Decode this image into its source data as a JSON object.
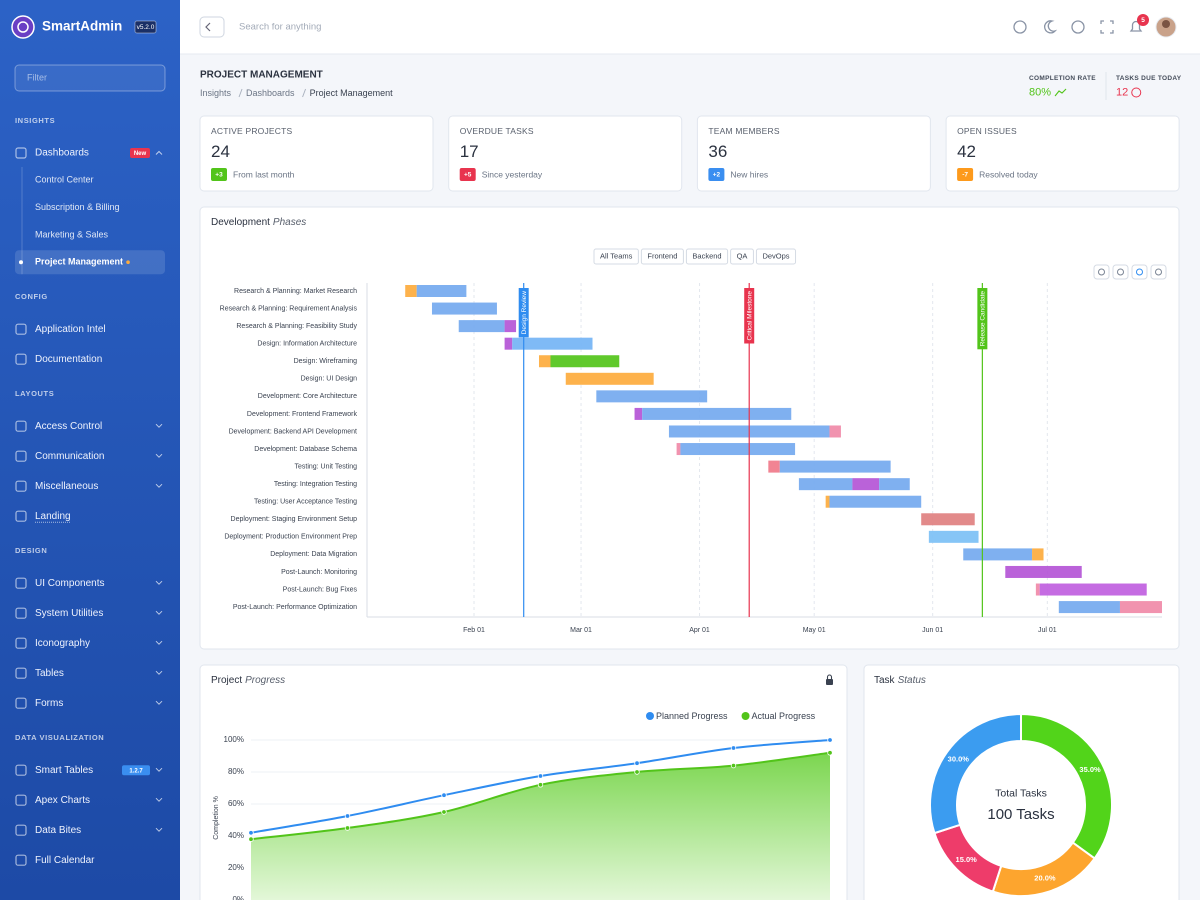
{
  "brand": {
    "name": "SmartAdmin",
    "version": "v5.2.0"
  },
  "sidebar": {
    "filter": "Filter",
    "sections": [
      {
        "title": "INSIGHTS",
        "items": [
          {
            "label": "Dashboards",
            "badge": "New",
            "badge_color": "#e8344e",
            "open": true,
            "children": [
              {
                "label": "Control Center"
              },
              {
                "label": "Subscription & Billing"
              },
              {
                "label": "Marketing & Sales"
              },
              {
                "label": "Project Management",
                "active": true
              }
            ]
          }
        ]
      },
      {
        "title": "CONFIG",
        "items": [
          {
            "label": "Application Intel"
          },
          {
            "label": "Documentation"
          }
        ]
      },
      {
        "title": "LAYOUTS",
        "items": [
          {
            "label": "Access Control",
            "arrow": true
          },
          {
            "label": "Communication",
            "arrow": true
          },
          {
            "label": "Miscellaneous",
            "arrow": true
          },
          {
            "label": "Landing",
            "underline": true
          }
        ]
      },
      {
        "title": "DESIGN",
        "items": [
          {
            "label": "UI Components",
            "arrow": true
          },
          {
            "label": "System Utilities",
            "arrow": true
          },
          {
            "label": "Iconography",
            "arrow": true
          },
          {
            "label": "Tables",
            "arrow": true
          },
          {
            "label": "Forms",
            "arrow": true
          }
        ]
      },
      {
        "title": "DATA VISUALIZATION",
        "items": [
          {
            "label": "Smart Tables",
            "badge": "1.2.7",
            "badge_color": "#3a8ef0",
            "arrow": true
          },
          {
            "label": "Apex Charts",
            "arrow": true
          },
          {
            "label": "Data Bites",
            "arrow": true
          },
          {
            "label": "Full Calendar"
          }
        ]
      }
    ]
  },
  "topbar": {
    "search": "Search for anything",
    "notifications": "5"
  },
  "header": {
    "title": "PROJECT MANAGEMENT",
    "breadcrumb": [
      "Insights",
      "Dashboards",
      "Project Management"
    ],
    "kpis": [
      {
        "label": "COMPLETION RATE",
        "value": "80%",
        "color": "#52c41a"
      },
      {
        "label": "TASKS DUE TODAY",
        "value": "12",
        "color": "#e8344e"
      }
    ]
  },
  "stats": [
    {
      "label": "ACTIVE PROJECTS",
      "value": 24,
      "badge": "+3",
      "badge_color": "#52c41a",
      "note": "From last month"
    },
    {
      "label": "OVERDUE TASKS",
      "value": 17,
      "badge": "+5",
      "badge_color": "#e8344e",
      "note": "Since yesterday"
    },
    {
      "label": "TEAM MEMBERS",
      "value": 36,
      "badge": "+2",
      "badge_color": "#3a8ef0",
      "note": "New hires"
    },
    {
      "label": "OPEN ISSUES",
      "value": 42,
      "badge": "-7",
      "badge_color": "#fd9a1c",
      "note": "Resolved today"
    }
  ],
  "gantt": {
    "type": "gantt",
    "title": "Development",
    "title_em": "Phases",
    "filters": [
      "All Teams",
      "Frontend",
      "Backend",
      "QA",
      "DevOps"
    ],
    "xlim": [
      3,
      211
    ],
    "xticks": [
      {
        "value": 31,
        "label": "Feb 01"
      },
      {
        "value": 59,
        "label": "Mar 01"
      },
      {
        "value": 90,
        "label": "Apr 01"
      },
      {
        "value": 120,
        "label": "May 01"
      },
      {
        "value": 151,
        "label": "Jun 01"
      },
      {
        "value": 181,
        "label": "Jul 01"
      }
    ],
    "milestones": [
      {
        "label": "Design Review",
        "value": 44,
        "color": "#2f8cf0"
      },
      {
        "label": "Critical Milestone",
        "value": 103,
        "color": "#e8344e"
      },
      {
        "label": "Release Candidate",
        "value": 164,
        "color": "#52c41a"
      }
    ],
    "tasks": [
      {
        "label": "Research & Planning: Market Research",
        "segments": [
          {
            "start": 13,
            "end": 16,
            "color": "#fdab3d"
          },
          {
            "start": 16,
            "end": 29,
            "color": "#74a9ef"
          }
        ]
      },
      {
        "label": "Research & Planning: Requirement Analysis",
        "segments": [
          {
            "start": 20,
            "end": 37,
            "color": "#74a9ef"
          }
        ]
      },
      {
        "label": "Research & Planning: Feasibility Study",
        "segments": [
          {
            "start": 27,
            "end": 39,
            "color": "#74a9ef"
          },
          {
            "start": 39,
            "end": 42,
            "color": "#b455d6"
          }
        ]
      },
      {
        "label": "Design: Information Architecture",
        "segments": [
          {
            "start": 39,
            "end": 41,
            "color": "#b455d6"
          },
          {
            "start": 41,
            "end": 62,
            "color": "#74b4f5"
          }
        ]
      },
      {
        "label": "Design: Wireframing",
        "segments": [
          {
            "start": 48,
            "end": 51,
            "color": "#fdab3d"
          },
          {
            "start": 51,
            "end": 69,
            "color": "#52c41a"
          }
        ]
      },
      {
        "label": "Design: UI Design",
        "segments": [
          {
            "start": 55,
            "end": 78,
            "color": "#fdab3d"
          }
        ]
      },
      {
        "label": "Development: Core Architecture",
        "segments": [
          {
            "start": 63,
            "end": 92,
            "color": "#74a9ef"
          }
        ]
      },
      {
        "label": "Development: Frontend Framework",
        "segments": [
          {
            "start": 73,
            "end": 75,
            "color": "#b455d6"
          },
          {
            "start": 75,
            "end": 114,
            "color": "#74a9ef"
          }
        ]
      },
      {
        "label": "Development: Backend API Development",
        "segments": [
          {
            "start": 82,
            "end": 124,
            "color": "#74a9ef"
          },
          {
            "start": 124,
            "end": 127,
            "color": "#f08aa8"
          }
        ]
      },
      {
        "label": "Development: Database Schema",
        "segments": [
          {
            "start": 84,
            "end": 85,
            "color": "#f08aa8"
          },
          {
            "start": 85,
            "end": 115,
            "color": "#74a9ef"
          }
        ]
      },
      {
        "label": "Testing: Unit Testing",
        "segments": [
          {
            "start": 108,
            "end": 111,
            "color": "#f07a8a"
          },
          {
            "start": 111,
            "end": 140,
            "color": "#74a9ef"
          }
        ]
      },
      {
        "label": "Testing: Integration Testing",
        "segments": [
          {
            "start": 116,
            "end": 130,
            "color": "#74a9ef"
          },
          {
            "start": 130,
            "end": 137,
            "color": "#b455d6"
          },
          {
            "start": 137,
            "end": 145,
            "color": "#74a9ef"
          }
        ]
      },
      {
        "label": "Testing: User Acceptance Testing",
        "segments": [
          {
            "start": 123,
            "end": 124,
            "color": "#fdab3d"
          },
          {
            "start": 124,
            "end": 148,
            "color": "#74a9ef"
          }
        ]
      },
      {
        "label": "Deployment: Staging Environment Setup",
        "segments": [
          {
            "start": 148,
            "end": 162,
            "color": "#e08080"
          }
        ]
      },
      {
        "label": "Deployment: Production Environment Prep",
        "segments": [
          {
            "start": 150,
            "end": 163,
            "color": "#7cc0f5"
          }
        ]
      },
      {
        "label": "Deployment: Data Migration",
        "segments": [
          {
            "start": 159,
            "end": 177,
            "color": "#74a9ef"
          },
          {
            "start": 177,
            "end": 180,
            "color": "#fdab3d"
          }
        ]
      },
      {
        "label": "Post-Launch: Monitoring",
        "segments": [
          {
            "start": 170,
            "end": 190,
            "color": "#b455d6"
          }
        ]
      },
      {
        "label": "Post-Launch: Bug Fixes",
        "segments": [
          {
            "start": 178,
            "end": 179,
            "color": "#f08aa8"
          },
          {
            "start": 179,
            "end": 207,
            "color": "#c060e0"
          }
        ]
      },
      {
        "label": "Post-Launch: Performance Optimization",
        "segments": [
          {
            "start": 184,
            "end": 200,
            "color": "#74a9ef"
          },
          {
            "start": 200,
            "end": 211,
            "color": "#f08aa8"
          }
        ]
      }
    ]
  },
  "progress": {
    "type": "line",
    "title": "Project",
    "title_em": "Progress",
    "y_label": "Completion %",
    "ylim": [
      0,
      100
    ],
    "yticks": [
      {
        "value": 0,
        "label": "0%"
      },
      {
        "value": 20,
        "label": "20%"
      },
      {
        "value": 40,
        "label": "40%"
      },
      {
        "value": 60,
        "label": "60%"
      },
      {
        "value": 80,
        "label": "80%"
      },
      {
        "value": 100,
        "label": "100%"
      }
    ],
    "series": [
      {
        "name": "Planned Progress",
        "color": "#2f8cf0",
        "values": [
          42,
          52.5,
          65.5,
          77.5,
          85.5,
          95,
          100
        ]
      },
      {
        "name": "Actual Progress",
        "color": "#52c41a",
        "area": true,
        "values": [
          38,
          45,
          55,
          72,
          80,
          84,
          92
        ]
      }
    ]
  },
  "donut": {
    "type": "pie",
    "title": "Task",
    "title_em": "Status",
    "center_label": "Total Tasks",
    "center_value": "100 Tasks",
    "values": [
      35,
      20,
      15,
      30
    ],
    "value_labels": [
      "35.0%",
      "20.0%",
      "15.0%",
      "30.0%"
    ],
    "colors": [
      "#52d41a",
      "#fda52e",
      "#ee3c6a",
      "#3b9cf0"
    ]
  }
}
